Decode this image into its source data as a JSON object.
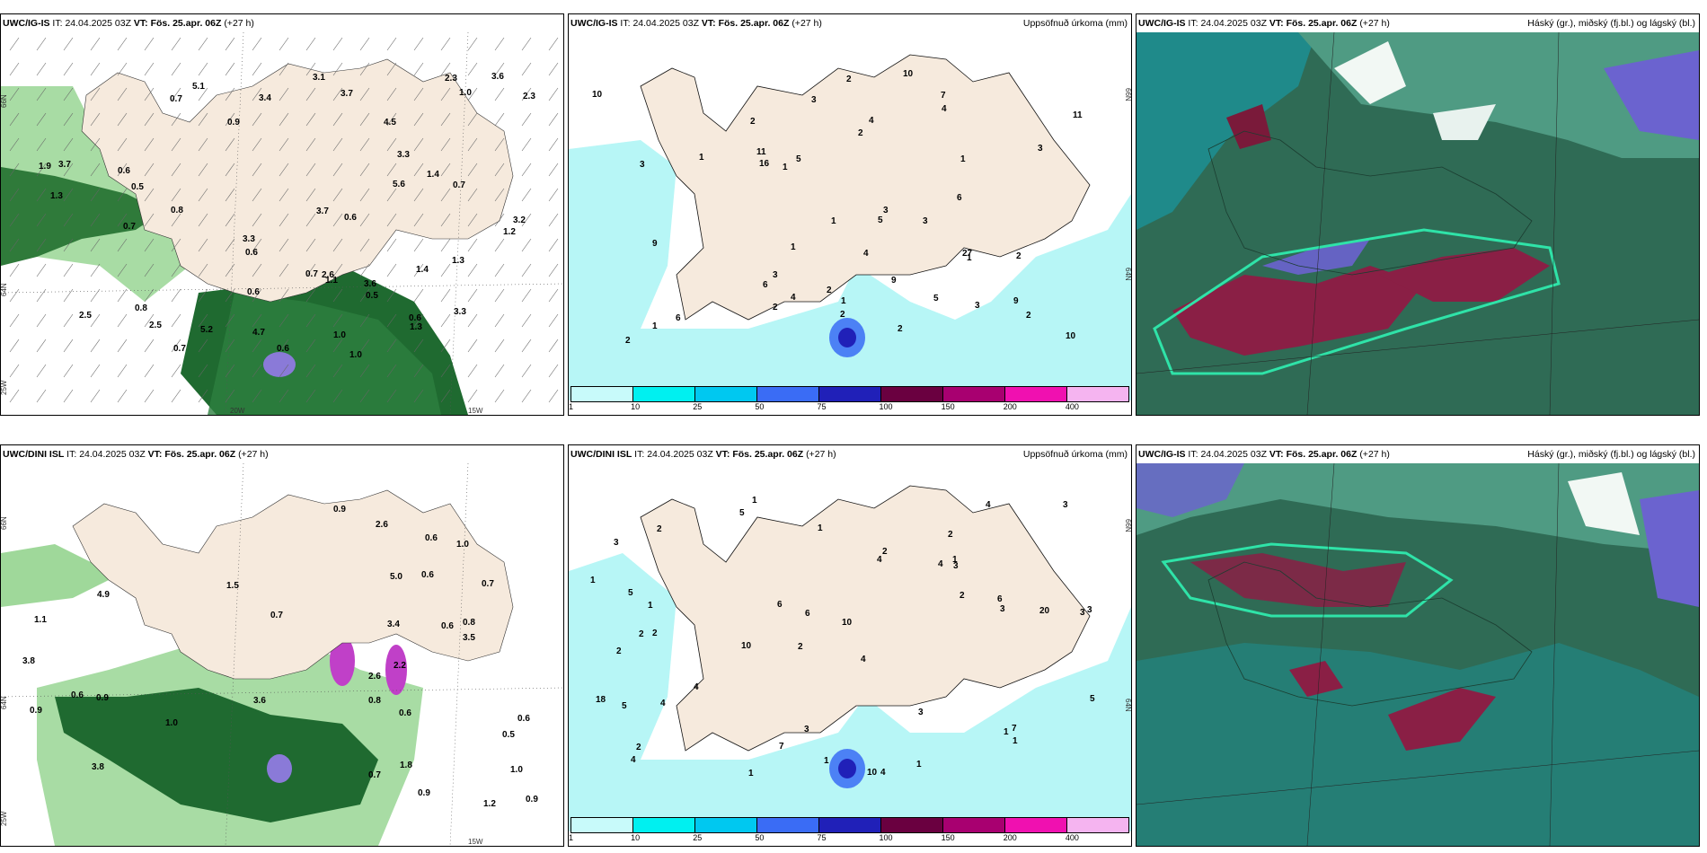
{
  "panels": [
    {
      "id": "r1c1",
      "model": "UWC/IG-IS",
      "it_label": "IT:",
      "it_value": "24.04.2025 03Z",
      "vt_label": "VT:",
      "vt_value": "Fös. 25.apr. 06Z",
      "lead": "(+27 h)",
      "right_title": "",
      "axis_labels": [
        "20W",
        "15W",
        "25W",
        "64N",
        "66N"
      ],
      "values": [
        "1.0",
        "0.7",
        "0.8",
        "0.6",
        "1.4",
        "1.0",
        "1.2",
        "0.8",
        "0.6",
        "2.5",
        "2.5",
        "1.9",
        "3.3",
        "2.6",
        "5.6",
        "2.3",
        "1.3",
        "1.0",
        "1.4",
        "0.7",
        "0.6",
        "1.1",
        "0.7",
        "1.3",
        "0.6",
        "3.3",
        "0.7",
        "0.5",
        "0.6",
        "0.9",
        "0.5",
        "3.6",
        "4.5",
        "5.2",
        "5.1",
        "4.7",
        "3.1",
        "3.7",
        "3.2",
        "3.6",
        "3.4",
        "3.7",
        "2.3",
        "3.3",
        "3.7",
        "1.3",
        "0.7",
        "0.6"
      ]
    },
    {
      "id": "r1c2",
      "model": "UWC/IG-IS",
      "it_label": "IT:",
      "it_value": "24.04.2025 03Z",
      "vt_label": "VT:",
      "vt_value": "Fös. 25.apr. 06Z",
      "lead": "(+27 h)",
      "right_title": "Uppsöfnuð úrkoma (mm)",
      "axis_labels": [
        "66N",
        "64N"
      ],
      "values": [
        "1",
        "2",
        "3",
        "4",
        "3",
        "10",
        "9",
        "7",
        "3",
        "6",
        "10",
        "16",
        "4",
        "2",
        "5",
        "11",
        "27",
        "9",
        "1",
        "11",
        "10",
        "6",
        "2",
        "3",
        "1",
        "4",
        "5",
        "2",
        "3",
        "9",
        "2",
        "1",
        "4",
        "2",
        "5",
        "2",
        "1",
        "1",
        "3",
        "2",
        "1",
        "3",
        "2",
        "2",
        "6",
        "1"
      ]
    },
    {
      "id": "r1c3",
      "model": "UWC/IG-IS",
      "it_label": "IT:",
      "it_value": "24.04.2025 03Z",
      "vt_label": "VT:",
      "vt_value": "Fös. 25.apr. 06Z",
      "lead": "(+27 h)",
      "right_title": "Háský (gr.), miðský (fj.bl.) og lágský (bl.)"
    },
    {
      "id": "r2c1",
      "model": "UWC/DINI ISL",
      "it_label": "IT:",
      "it_value": "24.04.2025 03Z",
      "vt_label": "VT:",
      "vt_value": "Fös. 25.apr. 06Z",
      "lead": "(+27 h)",
      "right_title": "",
      "axis_labels": [
        "15W",
        "25W",
        "64N",
        "66N"
      ],
      "values": [
        "0.8",
        "0.6",
        "0.6",
        "0.5",
        "0.7",
        "0.6",
        "0.8",
        "0.7",
        "1.0",
        "0.9",
        "2.2",
        "2.6",
        "0.9",
        "0.6",
        "1.0",
        "1.2",
        "1.0",
        "0.6",
        "0.6",
        "1.5",
        "3.6",
        "3.8",
        "3.4",
        "2.6",
        "3.5",
        "3.8",
        "4.9",
        "5.0",
        "0.9",
        "0.9",
        "0.7",
        "0.9",
        "1.1",
        "1.8"
      ]
    },
    {
      "id": "r2c2",
      "model": "UWC/DINI ISL",
      "it_label": "IT:",
      "it_value": "24.04.2025 03Z",
      "vt_label": "VT:",
      "vt_value": "Fös. 25.apr. 06Z",
      "lead": "(+27 h)",
      "right_title": "Uppsöfnuð úrkoma (mm)",
      "axis_labels": [
        "66N",
        "64N"
      ],
      "values": [
        "1",
        "2",
        "3",
        "2",
        "4",
        "2",
        "3",
        "4",
        "2",
        "4",
        "10",
        "4",
        "5",
        "10",
        "10",
        "4",
        "3",
        "4",
        "2",
        "4",
        "1",
        "2",
        "3",
        "20",
        "18",
        "5",
        "6",
        "3",
        "7",
        "5",
        "1",
        "2",
        "4",
        "6",
        "3",
        "5",
        "6",
        "7",
        "3",
        "1",
        "2",
        "1",
        "1",
        "2",
        "1",
        "3",
        "1",
        "1",
        "1"
      ]
    },
    {
      "id": "r2c3",
      "model": "UWC/IG-IS",
      "it_label": "IT:",
      "it_value": "24.04.2025 03Z",
      "vt_label": "VT:",
      "vt_value": "Fös. 25.apr. 06Z",
      "lead": "(+27 h)",
      "right_title": "Háský (gr.), miðský (fj.bl.) og lágský (bl.)"
    }
  ],
  "colorbar": {
    "labels": [
      "1",
      "10",
      "25",
      "50",
      "75",
      "100",
      "150",
      "200",
      "400"
    ],
    "colors": [
      "#c8fafa",
      "#00f0f0",
      "#00c8f0",
      "#3a6cf5",
      "#2020b8",
      "#6a0040",
      "#a80070",
      "#f010b0",
      "#f5b4f0"
    ]
  },
  "colors": {
    "land": "#f6eadd",
    "sea_precip_light": "#b7f6f6",
    "cloud_dark": "#2f6b55",
    "cloud_mid": "#4f9b83",
    "cloud_teal": "#1f8a8a",
    "cloud_blue": "#6b63cf",
    "cloud_red": "#8a1f45",
    "green_dark": "#1a5e2a",
    "green_light": "#a8dea0"
  }
}
